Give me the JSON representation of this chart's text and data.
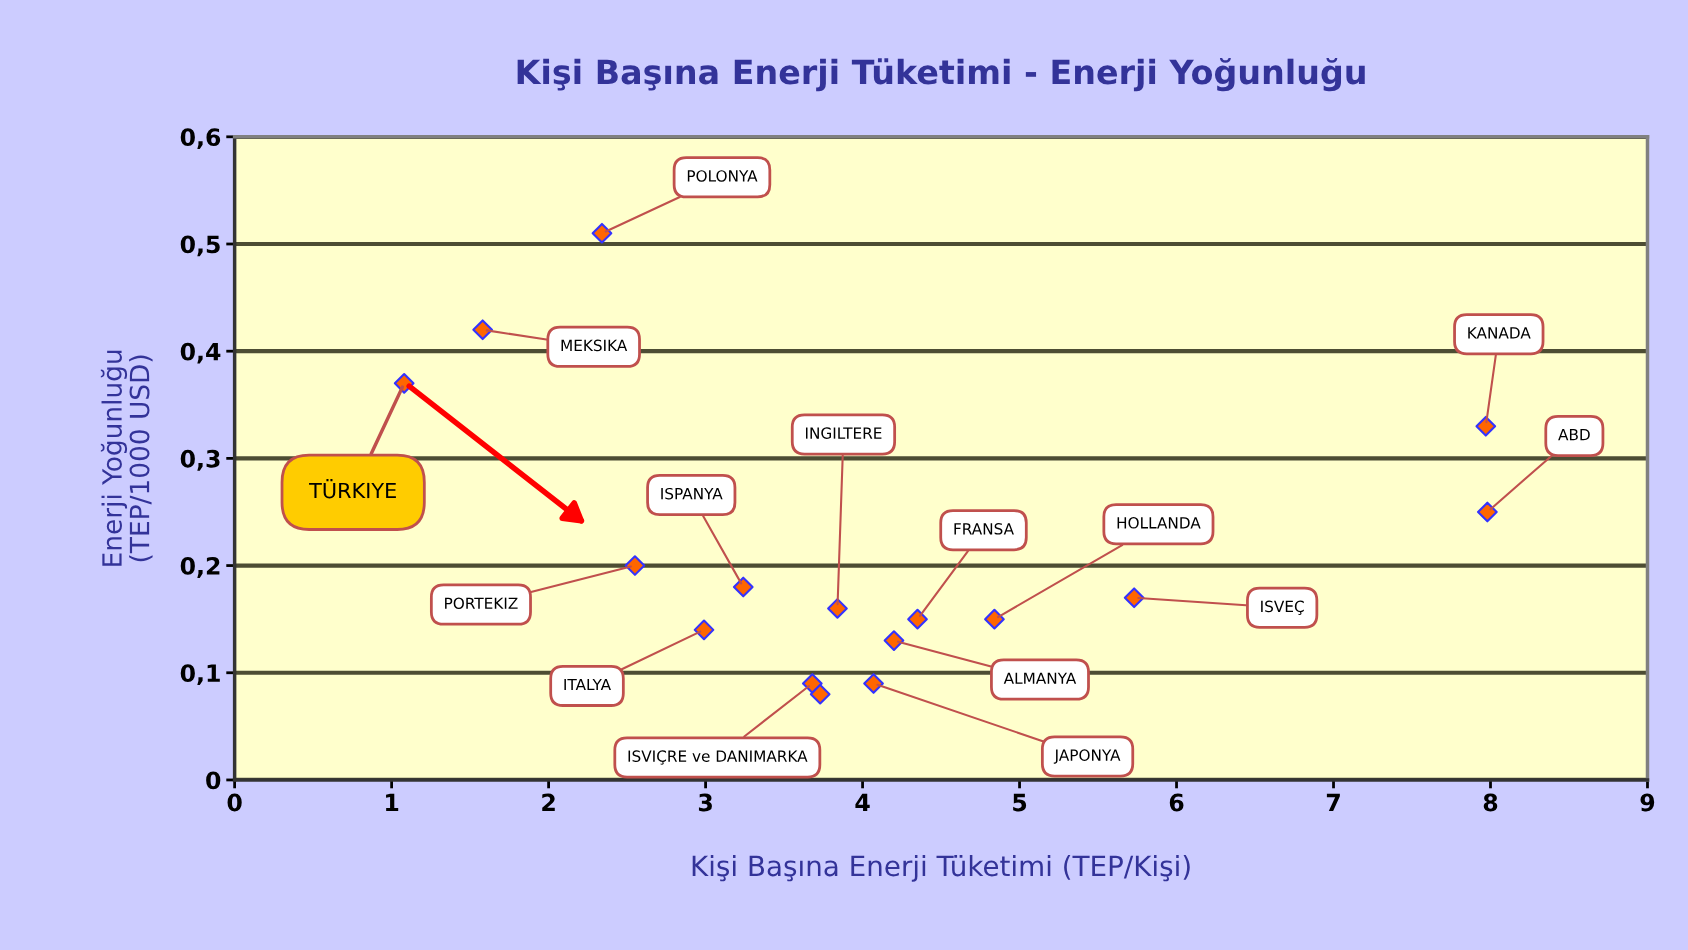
{
  "chart_data": {
    "type": "scatter",
    "title": "Kişi Başına Enerji Tüketimi - Enerji Yoğunluğu",
    "xlabel": "Kişi Başına Enerji Tüketimi (TEP/Kişi)",
    "ylabel": "Enerji Yoğunluğu\n(TEP/1000 USD)",
    "x": [
      2.34,
      1.58,
      1.08,
      2.55,
      3.24,
      2.99,
      3.84,
      3.68,
      3.73,
      4.07,
      4.2,
      4.35,
      4.84,
      5.73,
      7.97,
      7.98
    ],
    "series": [
      {
        "color": "#ff6600",
        "values": [
          0.51,
          0.42,
          0.37,
          0.2,
          0.18,
          0.14,
          0.16,
          0.09,
          0.08,
          0.09,
          0.13,
          0.15,
          0.15,
          0.17,
          0.33,
          0.25
        ]
      }
    ],
    "xlim": [
      0,
      9
    ],
    "xticks": [
      0,
      1,
      2,
      3,
      4,
      5,
      6,
      7,
      8,
      9
    ],
    "ylim": [
      0,
      0.6
    ],
    "yticks": [
      {
        "value": 0,
        "label": "0"
      },
      {
        "value": 0.1,
        "label": "0,1"
      },
      {
        "value": 0.2,
        "label": "0,2"
      },
      {
        "value": 0.3,
        "label": "0,3"
      },
      {
        "value": 0.4,
        "label": "0,4"
      },
      {
        "value": 0.5,
        "label": "0,5"
      },
      {
        "value": 0.6,
        "label": "0,6"
      }
    ],
    "grid": "y",
    "marker": "diamond",
    "annotations": [
      {
        "text": "POLONYA",
        "x": 2.34,
        "y": 0.51
      },
      {
        "text": "MEKSIKA",
        "x": 1.58,
        "y": 0.42
      },
      {
        "text": "TÜRKIYE",
        "x": 1.08,
        "y": 0.37
      },
      {
        "text": "PORTEKIZ",
        "x": 2.55,
        "y": 0.2
      },
      {
        "text": "ISPANYA",
        "x": 3.24,
        "y": 0.18
      },
      {
        "text": "ITALYA",
        "x": 2.99,
        "y": 0.14
      },
      {
        "text": "INGILTERE",
        "x": 3.84,
        "y": 0.16
      },
      {
        "text": "ISVIÇRE ve DANIMARKA",
        "x": 3.68,
        "y": 0.09
      },
      {
        "text": "JAPONYA",
        "x": 4.07,
        "y": 0.09
      },
      {
        "text": "ALMANYA",
        "x": 4.2,
        "y": 0.13
      },
      {
        "text": "FRANSA",
        "x": 4.35,
        "y": 0.15
      },
      {
        "text": "HOLLANDA",
        "x": 4.84,
        "y": 0.15
      },
      {
        "text": "ISVEÇ",
        "x": 5.73,
        "y": 0.17
      },
      {
        "text": "KANADA",
        "x": 7.97,
        "y": 0.33
      },
      {
        "text": "ABD",
        "x": 7.98,
        "y": 0.25
      }
    ]
  }
}
